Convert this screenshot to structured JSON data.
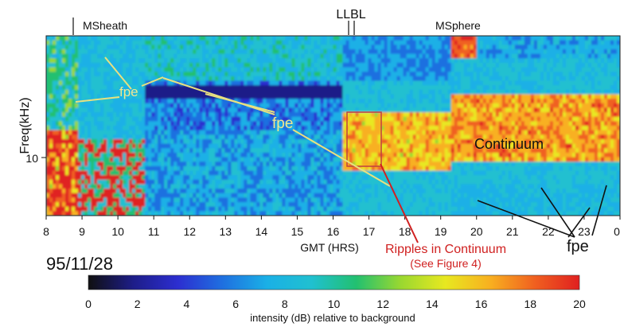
{
  "chart_data": {
    "type": "heatmap",
    "title": "",
    "date": "95/11/28",
    "xlabel": "GMT (HRS)",
    "ylabel": "Freq(kHz)",
    "xlim": [
      8,
      24
    ],
    "x_ticks": [
      "8",
      "9",
      "10",
      "11",
      "12",
      "13",
      "14",
      "15",
      "16",
      "17",
      "18",
      "19",
      "20",
      "21",
      "22",
      "23",
      "0"
    ],
    "y_ticks": [
      "10"
    ],
    "regions": [
      {
        "label": "MSheath",
        "at_hour": 8.75
      },
      {
        "label": "LLBL",
        "at_hour": 16.6
      },
      {
        "label": "MSphere",
        "at_hour": 19.5
      }
    ],
    "boundary_marks_hours": [
      8.75,
      16.45,
      16.65
    ],
    "annotations": {
      "fpe_labels": [
        "fpe",
        "fpe",
        "fpe"
      ],
      "continuum": "Continuum",
      "ripples": "Ripples in Continuum",
      "ripples_note": "(See Figure 4)",
      "ripples_box_hours": [
        16.5,
        17.3
      ]
    },
    "colorbar": {
      "label": "intensity (dB) relative to background",
      "range": [
        0,
        20
      ],
      "ticks": [
        "0",
        "2",
        "4",
        "6",
        "8",
        "10",
        "12",
        "14",
        "16",
        "18",
        "20"
      ],
      "colors": [
        "#101010",
        "#1d1d88",
        "#2c2ed0",
        "#1f6fe0",
        "#1ab0e6",
        "#20c0d0",
        "#22c070",
        "#9ad830",
        "#e8e820",
        "#f8b020",
        "#f06020",
        "#e02020"
      ]
    }
  }
}
